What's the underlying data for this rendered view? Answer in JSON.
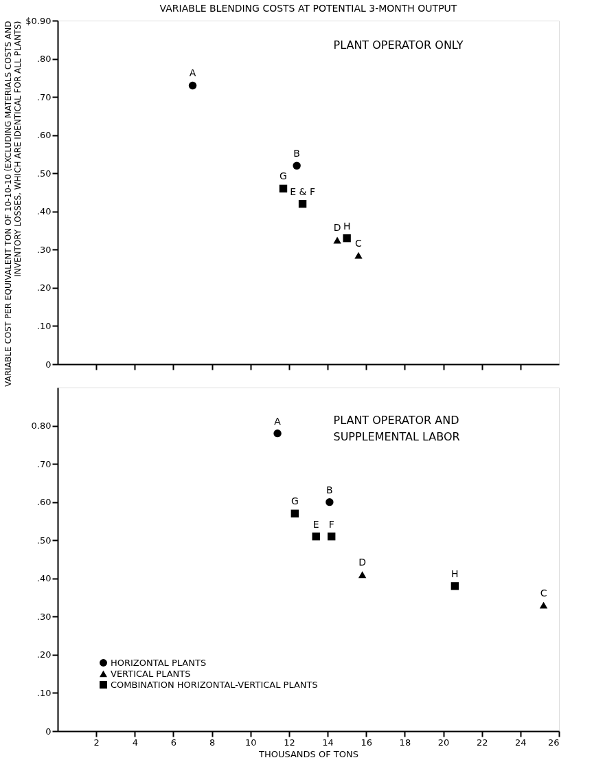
{
  "chart_data": [
    {
      "type": "scatter",
      "title": "VARIABLE BLENDING COSTS AT POTENTIAL 3-MONTH OUTPUT",
      "subtitle": "PLANT OPERATOR ONLY",
      "ylabel": "VARIABLE COST PER EQUIVALENT TON OF 10-10-10 (EXCLUDING MATERIALS COSTS AND INVENTORY LOSSES, WHICH ARE IDENTICAL FOR ALL PLANTS)",
      "xlim": [
        0,
        26
      ],
      "xticks": [
        {
          "value": 2,
          "label": null
        },
        {
          "value": 4,
          "label": null
        },
        {
          "value": 6,
          "label": null
        },
        {
          "value": 8,
          "label": null
        },
        {
          "value": 10,
          "label": null
        },
        {
          "value": 12,
          "label": null
        },
        {
          "value": 14,
          "label": null
        },
        {
          "value": 16,
          "label": null
        },
        {
          "value": 18,
          "label": null
        },
        {
          "value": 20,
          "label": null
        },
        {
          "value": 22,
          "label": null
        },
        {
          "value": 24,
          "label": null
        }
      ],
      "ylim": [
        0,
        0.9
      ],
      "yticks": [
        0,
        {
          "value": 0.1,
          "label": ".10"
        },
        {
          "value": 0.2,
          "label": ".20"
        },
        {
          "value": 0.3,
          "label": ".30"
        },
        {
          "value": 0.4,
          "label": ".40"
        },
        {
          "value": 0.5,
          "label": ".50"
        },
        {
          "value": 0.6,
          "label": ".60"
        },
        {
          "value": 0.7,
          "label": ".70"
        },
        {
          "value": 0.8,
          "label": ".80"
        },
        {
          "value": 0.9,
          "label": "$0.90"
        }
      ],
      "tick_labels": "y",
      "grid": false,
      "legend": false,
      "series": [
        {
          "color": "#000000",
          "marker": "circle",
          "x": [
            7.0,
            12.4
          ],
          "values": [
            0.73,
            0.52
          ]
        },
        {
          "color": "#000000",
          "marker": "triangle",
          "x": [
            14.5,
            15.6
          ],
          "values": [
            0.325,
            0.285
          ]
        },
        {
          "color": "#000000",
          "marker": "square",
          "x": [
            11.7,
            12.7,
            15.0
          ],
          "values": [
            0.46,
            0.42,
            0.33
          ]
        }
      ],
      "annotations": [
        {
          "text": "A",
          "x": 7.0,
          "y": 0.73
        },
        {
          "text": "B",
          "x": 12.4,
          "y": 0.52
        },
        {
          "text": "D",
          "x": 14.5,
          "y": 0.325
        },
        {
          "text": "C",
          "x": 15.6,
          "y": 0.285
        },
        {
          "text": "G",
          "x": 11.7,
          "y": 0.46
        },
        {
          "text": "E & F",
          "x": 12.7,
          "y": 0.42
        },
        {
          "text": "H",
          "x": 15.0,
          "y": 0.33
        }
      ]
    },
    {
      "type": "scatter",
      "subtitle": "PLANT OPERATOR AND SUPPLEMENTAL LABOR",
      "xlabel": "THOUSANDS OF TONS",
      "xlim": [
        0,
        26
      ],
      "xticks": [
        2,
        4,
        6,
        8,
        10,
        12,
        14,
        16,
        18,
        20,
        22,
        24,
        26
      ],
      "ylim": [
        0,
        0.9
      ],
      "yticks": [
        0,
        {
          "value": 0.1,
          "label": ".10"
        },
        {
          "value": 0.2,
          "label": ".20"
        },
        {
          "value": 0.3,
          "label": ".30"
        },
        {
          "value": 0.4,
          "label": ".40"
        },
        {
          "value": 0.5,
          "label": ".50"
        },
        {
          "value": 0.6,
          "label": ".60"
        },
        {
          "value": 0.7,
          "label": ".70"
        },
        {
          "value": 0.8,
          "label": "0.80"
        }
      ],
      "grid": false,
      "legend": "bottom left",
      "series": [
        {
          "name": "HORIZONTAL PLANTS",
          "color": "#000000",
          "marker": "circle",
          "x": [
            11.4,
            14.1
          ],
          "values": [
            0.78,
            0.6
          ]
        },
        {
          "name": "VERTICAL PLANTS",
          "color": "#000000",
          "marker": "triangle",
          "x": [
            15.8,
            25.2
          ],
          "values": [
            0.41,
            0.33
          ]
        },
        {
          "name": "COMBINATION HORIZONTAL-VERTICAL PLANTS",
          "color": "#000000",
          "marker": "square",
          "x": [
            12.3,
            13.4,
            14.2,
            20.6
          ],
          "values": [
            0.57,
            0.51,
            0.51,
            0.38
          ]
        }
      ],
      "annotations": [
        {
          "text": "A",
          "x": 11.4,
          "y": 0.78
        },
        {
          "text": "B",
          "x": 14.1,
          "y": 0.6
        },
        {
          "text": "D",
          "x": 15.8,
          "y": 0.41
        },
        {
          "text": "C",
          "x": 25.2,
          "y": 0.33
        },
        {
          "text": "G",
          "x": 12.3,
          "y": 0.57
        },
        {
          "text": "E",
          "x": 13.4,
          "y": 0.51
        },
        {
          "text": "F",
          "x": 14.2,
          "y": 0.51
        },
        {
          "text": "H",
          "x": 20.6,
          "y": 0.38
        }
      ]
    }
  ]
}
